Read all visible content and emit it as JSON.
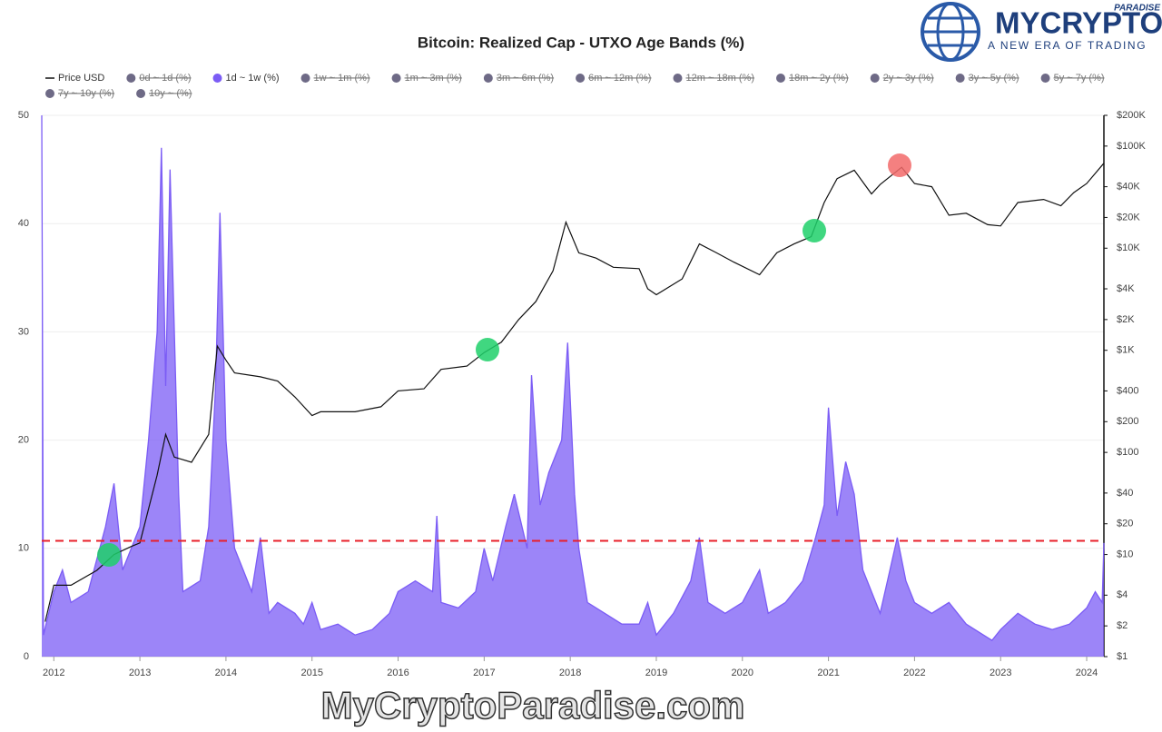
{
  "chart_data": {
    "type": "area-line",
    "title": "Bitcoin: Realized Cap - UTXO Age Bands (%)",
    "xlim": [
      2011.86,
      2024.2
    ],
    "xticks": [
      2012,
      2013,
      2014,
      2015,
      2016,
      2017,
      2018,
      2019,
      2020,
      2021,
      2022,
      2023,
      2024
    ],
    "ylim": [
      0,
      50
    ],
    "yticks": [
      0,
      10,
      20,
      30,
      40,
      50
    ],
    "y2lim": [
      1,
      200000
    ],
    "y2scale": "log",
    "y2ticks": [
      {
        "value": 1,
        "label": "$1"
      },
      {
        "value": 2,
        "label": "$2"
      },
      {
        "value": 4,
        "label": "$4"
      },
      {
        "value": 10,
        "label": "$10"
      },
      {
        "value": 20,
        "label": "$20"
      },
      {
        "value": 40,
        "label": "$40"
      },
      {
        "value": 100,
        "label": "$100"
      },
      {
        "value": 200,
        "label": "$200"
      },
      {
        "value": 400,
        "label": "$400"
      },
      {
        "value": 1000,
        "label": "$1K"
      },
      {
        "value": 2000,
        "label": "$2K"
      },
      {
        "value": 4000,
        "label": "$4K"
      },
      {
        "value": 10000,
        "label": "$10K"
      },
      {
        "value": 20000,
        "label": "$20K"
      },
      {
        "value": 40000,
        "label": "$40K"
      },
      {
        "value": 100000,
        "label": "$100K"
      },
      {
        "value": 200000,
        "label": "$200K"
      }
    ],
    "grid": true,
    "reference_line": {
      "value": 10.7,
      "color": "#e8202a"
    },
    "series": [
      {
        "name": "Price USD",
        "color": "#111111",
        "axis": "y2",
        "visible": true,
        "x": [
          2011.9,
          2012.0,
          2012.2,
          2012.5,
          2012.7,
          2012.9,
          2013.0,
          2013.2,
          2013.3,
          2013.4,
          2013.6,
          2013.8,
          2013.9,
          2014.0,
          2014.1,
          2014.4,
          2014.6,
          2014.8,
          2015.0,
          2015.1,
          2015.5,
          2015.8,
          2016.0,
          2016.3,
          2016.5,
          2016.8,
          2017.0,
          2017.2,
          2017.4,
          2017.6,
          2017.8,
          2017.95,
          2018.1,
          2018.3,
          2018.5,
          2018.8,
          2018.9,
          2019.0,
          2019.3,
          2019.5,
          2019.7,
          2019.9,
          2020.2,
          2020.4,
          2020.6,
          2020.8,
          2020.95,
          2021.1,
          2021.3,
          2021.5,
          2021.6,
          2021.85,
          2022.0,
          2022.2,
          2022.4,
          2022.6,
          2022.85,
          2023.0,
          2023.2,
          2023.5,
          2023.7,
          2023.85,
          2024.0,
          2024.2
        ],
        "values": [
          2.2,
          5,
          5,
          7,
          10,
          12,
          13,
          60,
          150,
          90,
          80,
          150,
          1100,
          800,
          600,
          550,
          500,
          350,
          230,
          250,
          250,
          280,
          400,
          420,
          650,
          700,
          950,
          1200,
          2000,
          3000,
          6000,
          18000,
          9000,
          8000,
          6500,
          6300,
          4000,
          3500,
          5000,
          11000,
          9000,
          7300,
          5500,
          9000,
          11000,
          13000,
          28000,
          48000,
          58000,
          34000,
          42000,
          62000,
          43000,
          40000,
          21000,
          22000,
          17000,
          16500,
          28000,
          30000,
          26000,
          35000,
          43000,
          68000
        ]
      },
      {
        "name": "0d ~ 1d (%)",
        "color": "#6e6a86",
        "visible": false
      },
      {
        "name": "1d ~ 1w (%)",
        "color": "#7b5cf5",
        "visible": true,
        "x": [
          2011.86,
          2011.88,
          2012.0,
          2012.1,
          2012.2,
          2012.4,
          2012.5,
          2012.6,
          2012.7,
          2012.8,
          2012.9,
          2013.0,
          2013.1,
          2013.2,
          2013.25,
          2013.3,
          2013.35,
          2013.45,
          2013.5,
          2013.7,
          2013.8,
          2013.88,
          2013.93,
          2014.0,
          2014.1,
          2014.2,
          2014.3,
          2014.4,
          2014.5,
          2014.6,
          2014.8,
          2014.9,
          2015.0,
          2015.1,
          2015.3,
          2015.5,
          2015.7,
          2015.9,
          2016.0,
          2016.2,
          2016.4,
          2016.45,
          2016.5,
          2016.7,
          2016.9,
          2017.0,
          2017.1,
          2017.25,
          2017.35,
          2017.5,
          2017.55,
          2017.65,
          2017.75,
          2017.9,
          2017.97,
          2018.05,
          2018.1,
          2018.2,
          2018.4,
          2018.6,
          2018.8,
          2018.9,
          2019.0,
          2019.2,
          2019.4,
          2019.5,
          2019.6,
          2019.8,
          2020.0,
          2020.2,
          2020.3,
          2020.5,
          2020.7,
          2020.85,
          2020.95,
          2021.0,
          2021.1,
          2021.2,
          2021.3,
          2021.4,
          2021.5,
          2021.6,
          2021.8,
          2021.9,
          2022.0,
          2022.2,
          2022.4,
          2022.6,
          2022.8,
          2022.9,
          2023.0,
          2023.2,
          2023.4,
          2023.6,
          2023.8,
          2024.0,
          2024.1,
          2024.18,
          2024.2
        ],
        "values": [
          50,
          2,
          6,
          8,
          5,
          6,
          9,
          12,
          16,
          8,
          10,
          12,
          20,
          30,
          47,
          25,
          45,
          15,
          6,
          7,
          12,
          25,
          41,
          20,
          10,
          8,
          6,
          11,
          4,
          5,
          4,
          3,
          5,
          2.5,
          3,
          2,
          2.5,
          4,
          6,
          7,
          6,
          13,
          5,
          4.5,
          6,
          10,
          7,
          12,
          15,
          10,
          26,
          14,
          17,
          20,
          29,
          15,
          10,
          5,
          4,
          3,
          3,
          5,
          2,
          4,
          7,
          11,
          5,
          4,
          5,
          8,
          4,
          5,
          7,
          11,
          14,
          23,
          13,
          18,
          15,
          8,
          6,
          4,
          11,
          7,
          5,
          4,
          5,
          3,
          2,
          1.5,
          2.5,
          4,
          3,
          2.5,
          3,
          4.5,
          6,
          5,
          10.5
        ]
      },
      {
        "name": "1w ~ 1m (%)",
        "color": "#6e6a86",
        "visible": false
      },
      {
        "name": "1m ~ 3m (%)",
        "color": "#6e6a86",
        "visible": false
      },
      {
        "name": "3m ~ 6m (%)",
        "color": "#6e6a86",
        "visible": false
      },
      {
        "name": "6m ~ 12m (%)",
        "color": "#6e6a86",
        "visible": false
      },
      {
        "name": "12m ~ 18m (%)",
        "color": "#6e6a86",
        "visible": false
      },
      {
        "name": "18m ~ 2y (%)",
        "color": "#6e6a86",
        "visible": false
      },
      {
        "name": "2y ~ 3y (%)",
        "color": "#6e6a86",
        "visible": false
      },
      {
        "name": "3y ~ 5y (%)",
        "color": "#6e6a86",
        "visible": false
      },
      {
        "name": "5y ~ 7y (%)",
        "color": "#6e6a86",
        "visible": false
      },
      {
        "name": "7y ~ 10y (%)",
        "color": "#6e6a86",
        "visible": false
      },
      {
        "name": "10y ~ (%)",
        "color": "#6e6a86",
        "visible": false
      }
    ]
  },
  "logo": {
    "brand": "MYCRYPTO",
    "tag": "PARADISE",
    "slogan": "A NEW ERA OF TRADING"
  },
  "watermark": "MyCryptoParadise.com"
}
